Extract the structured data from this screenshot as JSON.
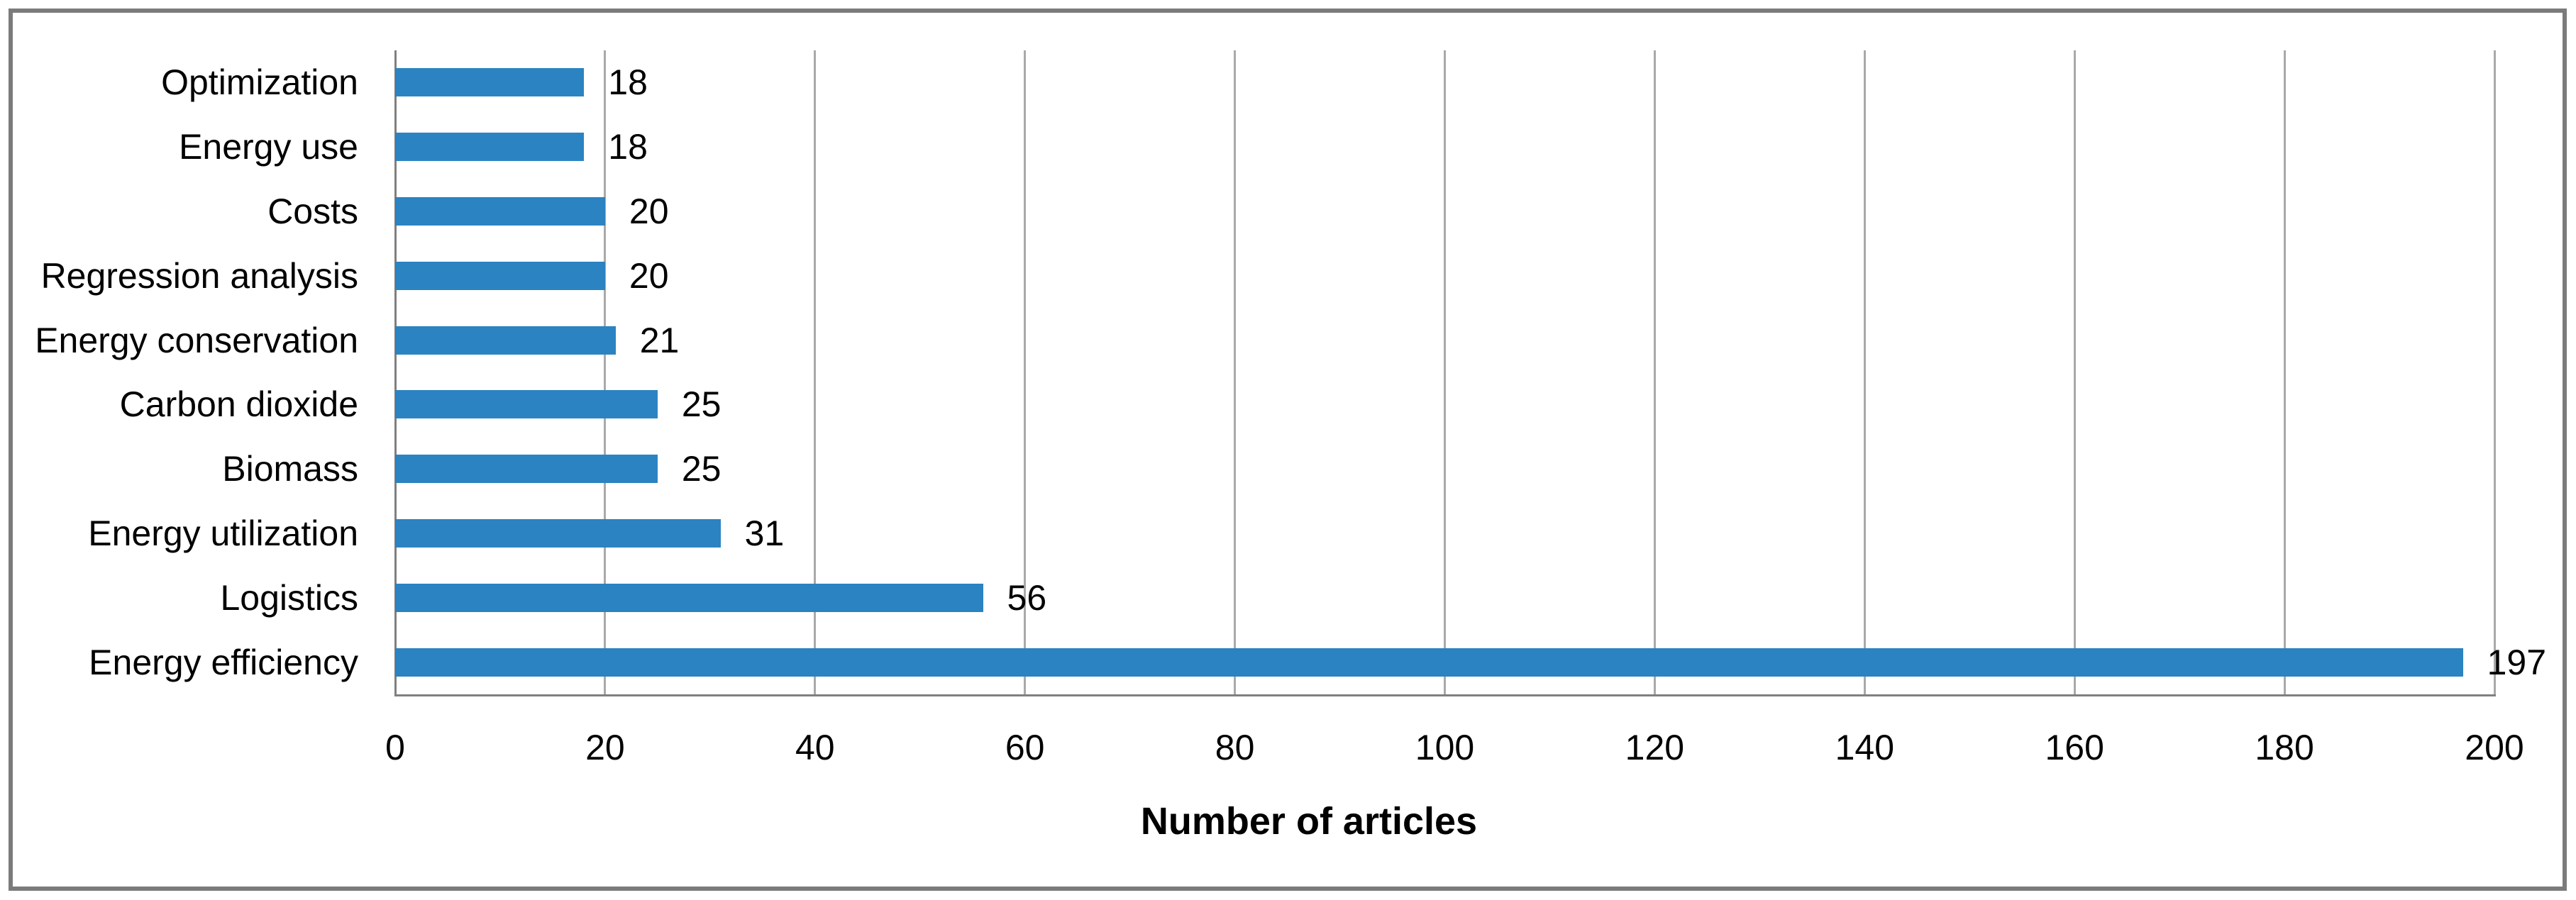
{
  "chart_data": {
    "type": "bar",
    "orientation": "horizontal",
    "title": "",
    "categories": [
      "Optimization",
      "Energy use",
      "Costs",
      "Regression analysis",
      "Energy conservation",
      "Carbon dioxide",
      "Biomass",
      "Energy utilization",
      "Logistics",
      "Energy efficiency"
    ],
    "values": [
      18,
      18,
      20,
      20,
      21,
      25,
      25,
      31,
      56,
      197
    ],
    "xlabel": "Number of articles",
    "ylabel": "",
    "x_ticks": [
      0,
      20,
      40,
      60,
      80,
      100,
      120,
      140,
      160,
      180,
      200
    ],
    "xlim": [
      0,
      200
    ],
    "grid": "vertical-only",
    "legend": "none",
    "data_labels": "outside-end",
    "colors": {
      "bar_fill": "#2b83c1",
      "gridline": "#a9a9a9",
      "axis_line": "#808080",
      "frame_border": "#7b7b7b",
      "text": "#000000"
    }
  }
}
